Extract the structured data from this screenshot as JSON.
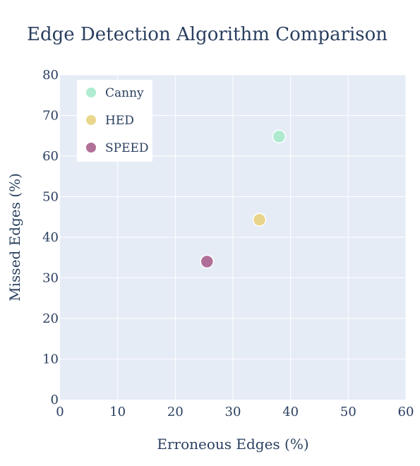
{
  "chart_data": {
    "type": "scatter",
    "title": "Edge Detection Algorithm Comparison",
    "xlabel": "Erroneous Edges (%)",
    "ylabel": "Missed Edges (%)",
    "xlim": [
      0,
      60
    ],
    "ylim": [
      0,
      80
    ],
    "x_ticks": [
      0,
      10,
      20,
      30,
      40,
      50,
      60
    ],
    "y_ticks": [
      0,
      10,
      20,
      30,
      40,
      50,
      60,
      70,
      80
    ],
    "grid": true,
    "legend_position": "top-left",
    "series": [
      {
        "name": "Canny",
        "color": "#a6eacb",
        "points": [
          {
            "x": 38,
            "y": 64.8
          }
        ]
      },
      {
        "name": "HED",
        "color": "#e8d37f",
        "points": [
          {
            "x": 34.6,
            "y": 44.3
          }
        ]
      },
      {
        "name": "SPEED",
        "color": "#a8618d",
        "points": [
          {
            "x": 25.5,
            "y": 34
          }
        ]
      }
    ]
  }
}
